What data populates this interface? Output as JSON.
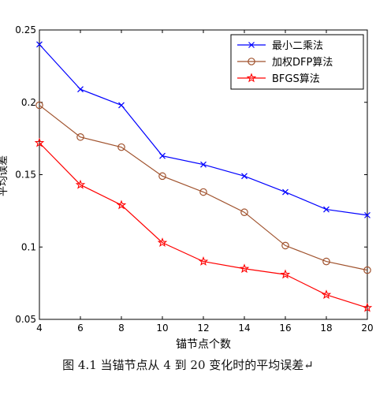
{
  "chart_data": {
    "type": "line",
    "title": "",
    "xlabel": "锚节点个数",
    "ylabel": "平均误差",
    "x": [
      4,
      6,
      8,
      10,
      12,
      14,
      16,
      18,
      20
    ],
    "xlim": [
      4,
      20
    ],
    "ylim": [
      0.05,
      0.25
    ],
    "xticks": [
      "4",
      "6",
      "8",
      "10",
      "12",
      "14",
      "16",
      "18",
      "20"
    ],
    "yticks": [
      "0.05",
      "0.1",
      "0.15",
      "0.2",
      "0.25"
    ],
    "grid": false,
    "legend_position": "top-right",
    "series": [
      {
        "name": "最小二乘法",
        "color": "#0000ff",
        "marker": "x",
        "values": [
          0.24,
          0.209,
          0.198,
          0.163,
          0.157,
          0.149,
          0.138,
          0.126,
          0.122
        ]
      },
      {
        "name": "加权DFP算法",
        "color": "#a0522d",
        "marker": "o",
        "values": [
          0.198,
          0.176,
          0.169,
          0.149,
          0.138,
          0.124,
          0.101,
          0.09,
          0.084
        ]
      },
      {
        "name": "BFGS算法",
        "color": "#ff0000",
        "marker": "star",
        "values": [
          0.172,
          0.143,
          0.129,
          0.103,
          0.09,
          0.085,
          0.081,
          0.067,
          0.058
        ]
      }
    ]
  },
  "caption": "图 4.1  当锚节点从 4 到 20 变化时的平均误差↵"
}
